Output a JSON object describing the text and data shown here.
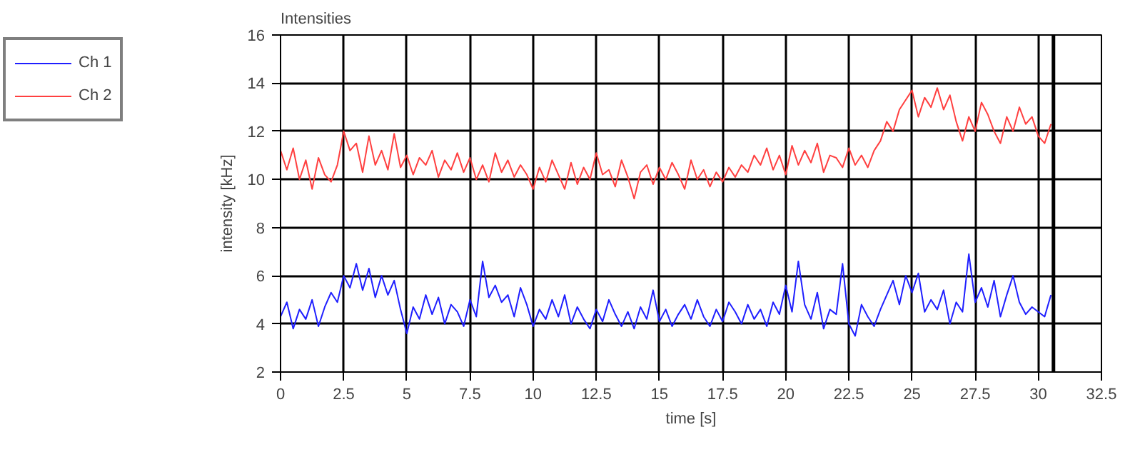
{
  "chart_data": {
    "type": "line",
    "title": "Intensities",
    "xlabel": "time [s]",
    "ylabel": "intensity [kHz]",
    "x": [
      0,
      0.25,
      0.5,
      0.75,
      1,
      1.25,
      1.5,
      1.75,
      2,
      2.25,
      2.5,
      2.75,
      3,
      3.25,
      3.5,
      3.75,
      4,
      4.25,
      4.5,
      4.75,
      5,
      5.25,
      5.5,
      5.75,
      6,
      6.25,
      6.5,
      6.75,
      7,
      7.25,
      7.5,
      7.75,
      8,
      8.25,
      8.5,
      8.75,
      9,
      9.25,
      9.5,
      9.75,
      10,
      10.25,
      10.5,
      10.75,
      11,
      11.25,
      11.5,
      11.75,
      12,
      12.25,
      12.5,
      12.75,
      13,
      13.25,
      13.5,
      13.75,
      14,
      14.25,
      14.5,
      14.75,
      15,
      15.25,
      15.5,
      15.75,
      16,
      16.25,
      16.5,
      16.75,
      17,
      17.25,
      17.5,
      17.75,
      18,
      18.25,
      18.5,
      18.75,
      19,
      19.25,
      19.5,
      19.75,
      20,
      20.25,
      20.5,
      20.75,
      21,
      21.25,
      21.5,
      21.75,
      22,
      22.25,
      22.5,
      22.75,
      23,
      23.25,
      23.5,
      23.75,
      24,
      24.25,
      24.5,
      24.75,
      25,
      25.25,
      25.5,
      25.75,
      26,
      26.25,
      26.5,
      26.75,
      27,
      27.25,
      27.5,
      27.75,
      28,
      28.25,
      28.5,
      28.75,
      29,
      29.25,
      29.5,
      29.75,
      30,
      30.25,
      30.5
    ],
    "series": [
      {
        "name": "Ch 1",
        "color": "#1f1fff",
        "values": [
          4.3,
          4.9,
          3.8,
          4.6,
          4.2,
          5.0,
          3.9,
          4.7,
          5.3,
          4.9,
          6.0,
          5.5,
          6.5,
          5.4,
          6.3,
          5.1,
          6.0,
          5.2,
          5.8,
          4.6,
          3.6,
          4.7,
          4.2,
          5.2,
          4.4,
          5.1,
          4.0,
          4.8,
          4.5,
          3.9,
          5.0,
          4.3,
          6.6,
          5.1,
          5.6,
          4.9,
          5.2,
          4.3,
          5.5,
          4.8,
          3.9,
          4.6,
          4.2,
          5.0,
          4.3,
          5.2,
          4.0,
          4.7,
          4.2,
          3.8,
          4.6,
          4.1,
          5.0,
          4.4,
          3.9,
          4.5,
          3.8,
          4.7,
          4.2,
          5.4,
          4.1,
          4.6,
          3.9,
          4.4,
          4.8,
          4.2,
          5.0,
          4.3,
          3.9,
          4.6,
          4.1,
          4.9,
          4.5,
          4.0,
          4.8,
          4.2,
          4.6,
          3.9,
          4.9,
          4.4,
          5.6,
          4.5,
          6.6,
          4.8,
          4.2,
          5.3,
          3.8,
          4.6,
          4.4,
          6.5,
          4.0,
          3.5,
          4.8,
          4.3,
          3.9,
          4.6,
          5.2,
          5.8,
          4.8,
          6.0,
          5.3,
          6.1,
          4.5,
          5.0,
          4.6,
          5.4,
          4.0,
          4.9,
          4.5,
          6.9,
          4.9,
          5.5,
          4.7,
          5.8,
          4.3,
          5.2,
          6.0,
          4.9,
          4.4,
          4.7,
          4.5,
          4.3,
          5.2
        ]
      },
      {
        "name": "Ch 2",
        "color": "#ff4040",
        "values": [
          11.2,
          10.4,
          11.3,
          10.0,
          10.8,
          9.6,
          10.9,
          10.2,
          9.9,
          10.6,
          12.0,
          11.2,
          11.5,
          10.3,
          11.8,
          10.6,
          11.2,
          10.4,
          11.9,
          10.5,
          11.0,
          10.2,
          10.9,
          10.6,
          11.2,
          10.1,
          10.8,
          10.4,
          11.1,
          10.3,
          10.9,
          10.0,
          10.6,
          9.9,
          11.1,
          10.3,
          10.8,
          10.1,
          10.6,
          10.2,
          9.6,
          10.5,
          9.9,
          10.8,
          10.2,
          9.6,
          10.7,
          9.8,
          10.5,
          10.0,
          11.1,
          10.2,
          10.4,
          9.7,
          10.8,
          10.1,
          9.2,
          10.3,
          10.6,
          9.8,
          10.5,
          10.0,
          10.7,
          10.2,
          9.6,
          10.8,
          10.0,
          10.4,
          9.7,
          10.3,
          9.9,
          10.5,
          10.1,
          10.6,
          10.3,
          11.0,
          10.6,
          11.3,
          10.4,
          11.0,
          10.2,
          11.4,
          10.6,
          11.2,
          10.7,
          11.5,
          10.3,
          11.0,
          10.9,
          10.5,
          11.3,
          10.6,
          11.0,
          10.5,
          11.2,
          11.6,
          12.4,
          12.0,
          12.9,
          13.3,
          13.7,
          12.6,
          13.4,
          13.0,
          13.8,
          12.9,
          13.5,
          12.4,
          11.6,
          12.6,
          12.0,
          13.2,
          12.7,
          12.0,
          11.5,
          12.6,
          12.0,
          13.0,
          12.3,
          12.6,
          11.8,
          11.5,
          12.3
        ]
      }
    ],
    "xlim": [
      0,
      32.5
    ],
    "ylim": [
      2,
      16
    ],
    "xticks": [
      0,
      2.5,
      5,
      7.5,
      10,
      12.5,
      15,
      17.5,
      20,
      22.5,
      25,
      27.5,
      30,
      32.5
    ],
    "yticks": [
      2,
      4,
      6,
      8,
      10,
      12,
      14,
      16
    ],
    "ref_lines": [
      {
        "axis": "x",
        "value": 30.6,
        "color": "#000000"
      }
    ],
    "grid": true,
    "legend": "top left",
    "marker": "none",
    "line_style": "solid"
  }
}
